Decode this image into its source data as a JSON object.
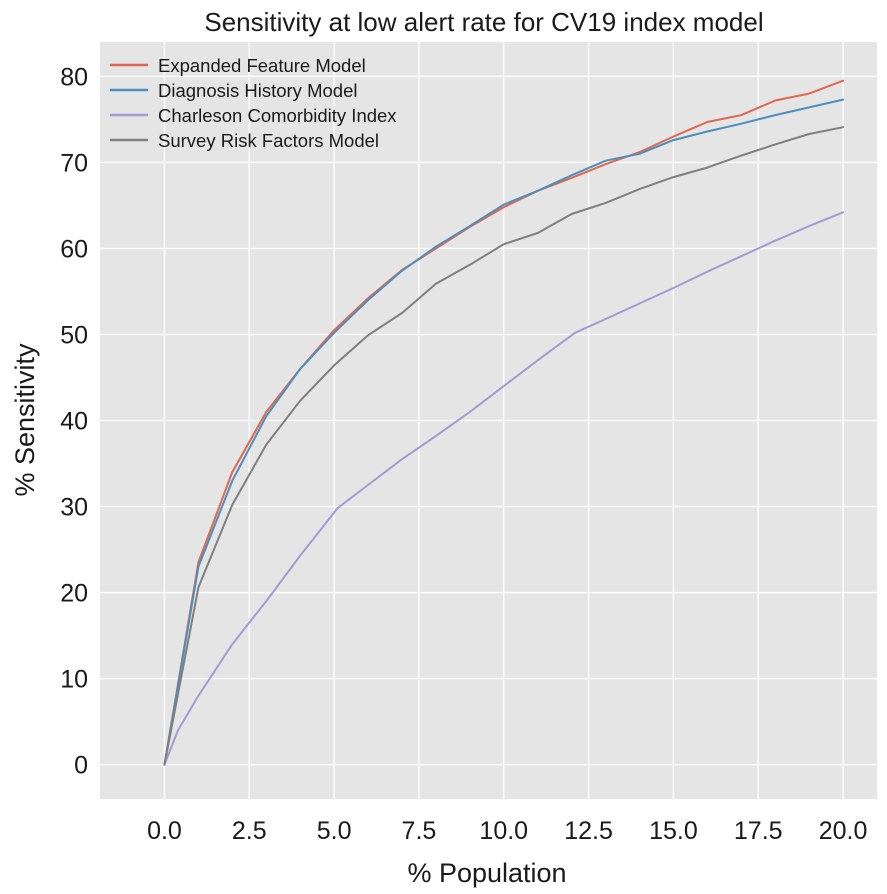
{
  "chart_data": {
    "type": "line",
    "title": "Sensitivity at low alert rate for CV19 index model",
    "xlabel": "% Population",
    "ylabel": "% Sensitivity",
    "xlim": [
      -1.9,
      21.0
    ],
    "ylim": [
      -4,
      84
    ],
    "xticks": [
      0.0,
      2.5,
      5.0,
      7.5,
      10.0,
      12.5,
      15.0,
      17.5,
      20.0
    ],
    "xtick_labels": [
      "0.0",
      "2.5",
      "5.0",
      "7.5",
      "10.0",
      "12.5",
      "15.0",
      "17.5",
      "20.0"
    ],
    "yticks": [
      0,
      10,
      20,
      30,
      40,
      50,
      60,
      70,
      80
    ],
    "ytick_labels": [
      "0",
      "10",
      "20",
      "30",
      "40",
      "50",
      "60",
      "70",
      "80"
    ],
    "grid": true,
    "legend_position": "top-left",
    "background_color": "#e5e5e5",
    "series": [
      {
        "name": "Expanded Feature Model",
        "color": "#e2674f",
        "x": [
          0,
          1,
          2,
          3,
          4,
          5,
          6,
          7,
          8,
          9,
          10,
          11,
          12,
          13,
          14,
          15,
          16,
          17,
          18,
          19,
          20
        ],
        "y": [
          0,
          23.5,
          34,
          41,
          46,
          50.5,
          54.2,
          57.5,
          60,
          62.5,
          64.8,
          66.7,
          68.2,
          69.8,
          71.2,
          73,
          74.7,
          75.5,
          77.2,
          78,
          79.5
        ]
      },
      {
        "name": "Diagnosis History Model",
        "color": "#4c8fbd",
        "x": [
          0,
          1,
          2,
          3,
          4,
          5,
          6,
          7,
          8,
          9,
          10,
          11,
          12,
          13,
          14,
          15,
          16,
          17,
          18,
          19,
          20
        ],
        "y": [
          0,
          23,
          33,
          40.5,
          46,
          50.2,
          54,
          57.4,
          60.2,
          62.6,
          65.1,
          66.7,
          68.5,
          70.2,
          71,
          72.6,
          73.6,
          74.5,
          75.5,
          76.4,
          77.3
        ]
      },
      {
        "name": "Charleson Comorbidity Index",
        "color": "#a59ad3",
        "x": [
          0,
          0.4,
          1,
          2,
          3,
          4,
          5.1,
          6,
          7,
          8,
          9,
          10,
          11,
          12.1,
          13,
          14,
          15,
          16,
          17,
          18,
          19,
          20
        ],
        "y": [
          0,
          4,
          8,
          14,
          19,
          24.3,
          29.8,
          32.5,
          35.5,
          38.2,
          41,
          44,
          47,
          50.2,
          51.8,
          53.6,
          55.4,
          57.3,
          59.1,
          60.9,
          62.6,
          64.2
        ]
      },
      {
        "name": "Survey Risk Factors Model",
        "color": "#7f7f7f",
        "x": [
          0,
          1,
          2,
          3,
          4,
          5,
          6,
          7,
          8,
          9,
          10,
          11,
          12,
          13,
          14,
          15,
          16,
          17,
          18,
          19,
          20
        ],
        "y": [
          0,
          20.6,
          30.2,
          37.2,
          42.3,
          46.4,
          49.9,
          52.5,
          55.9,
          58.1,
          60.5,
          61.8,
          64,
          65.3,
          66.9,
          68.3,
          69.4,
          70.8,
          72.1,
          73.3,
          74.1
        ]
      }
    ]
  }
}
